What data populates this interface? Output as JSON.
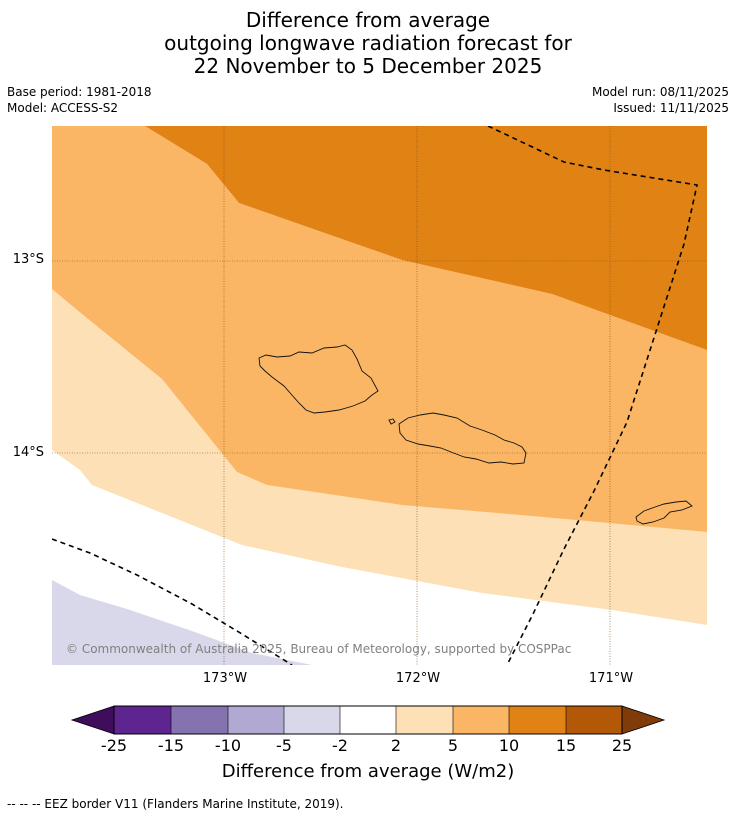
{
  "title": {
    "line1": "Difference from average",
    "line2": "outgoing longwave radiation forecast for",
    "line3": "22 November to 5 December 2025"
  },
  "meta": {
    "base_period": "Base period: 1981-2018",
    "model": "Model: ACCESS-S2",
    "model_run": "Model run: 08/11/2025",
    "issued": "Issued: 11/11/2025"
  },
  "axes": {
    "lat_labels": [
      "13°S",
      "14°S"
    ],
    "lon_labels": [
      "173°W",
      "172°W",
      "171°W"
    ]
  },
  "copyright": "© Commonwealth of Australia 2025, Bureau of Meteorology, supported by COSPPac",
  "colorbar": {
    "ticks": [
      "-25",
      "-15",
      "-10",
      "-5",
      "-2",
      "2",
      "5",
      "10",
      "15",
      "25"
    ],
    "colors": [
      "#3f0d5c",
      "#5e2590",
      "#8573b0",
      "#b2a9d2",
      "#d8d8ea",
      "#ffffff",
      "#fde0b5",
      "#fab664",
      "#e08214",
      "#b35806",
      "#7f3b08"
    ],
    "label": "Difference from average (W/m2)"
  },
  "zone_colors": {
    "dark_orange": "#e08214",
    "mid_orange": "#fab664",
    "light_orange": "#fde0b5",
    "white": "#ffffff",
    "light_purple": "#d8d8ea"
  },
  "footer": "-- -- -- EEZ border V11 (Flanders Marine Institute, 2019)."
}
